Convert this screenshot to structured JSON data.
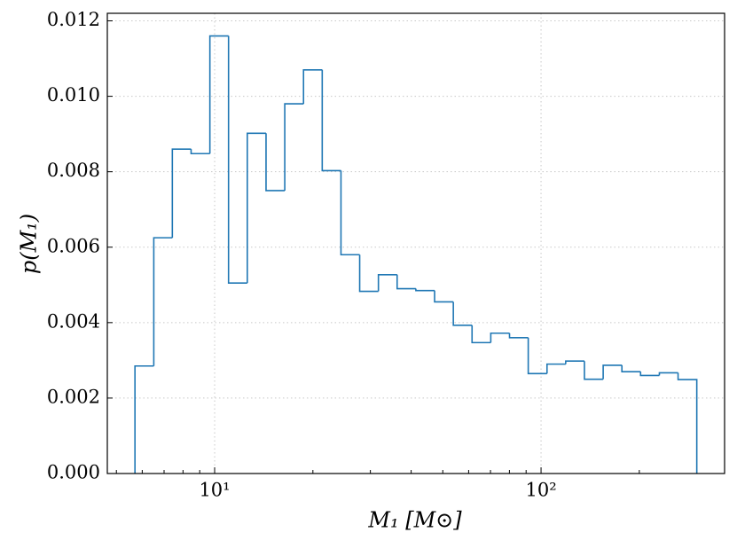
{
  "chart_data": {
    "type": "histogram",
    "histtype": "step",
    "color": "#1f77b4",
    "xlabel": "M₁ [M⊙]",
    "ylabel": "p(M₁)",
    "xscale": "log",
    "grid": true,
    "bins": [
      5.7,
      6.51,
      7.42,
      8.47,
      9.67,
      11.03,
      12.59,
      14.37,
      16.4,
      18.72,
      21.36,
      24.38,
      27.82,
      31.75,
      36.23,
      41.35,
      47.19,
      53.86,
      61.46,
      70.15,
      80.06,
      91.36,
      104.3,
      119.0,
      135.8,
      155.0,
      176.9,
      201.8,
      230.4,
      262.9,
      300.0
    ],
    "values": [
      0.00285,
      0.00625,
      0.0086,
      0.00848,
      0.0116,
      0.00505,
      0.00902,
      0.0075,
      0.0098,
      0.0107,
      0.00803,
      0.0058,
      0.00483,
      0.00527,
      0.0049,
      0.00485,
      0.00455,
      0.00393,
      0.00347,
      0.00372,
      0.0036,
      0.00265,
      0.0029,
      0.00298,
      0.0025,
      0.00287,
      0.0027,
      0.0026,
      0.00267,
      0.00249
    ],
    "xlim": [
      4.69,
      365
    ],
    "ylim": [
      0,
      0.0122
    ],
    "xticks": [
      {
        "value": 10,
        "label": "10¹"
      },
      {
        "value": 100,
        "label": "10²"
      }
    ],
    "xminorticks": [
      5,
      6,
      7,
      8,
      9,
      20,
      30,
      40,
      50,
      60,
      70,
      80,
      90,
      200,
      300
    ],
    "yticks": [
      {
        "value": 0,
        "label": "0.000"
      },
      {
        "value": 0.002,
        "label": "0.002"
      },
      {
        "value": 0.004,
        "label": "0.004"
      },
      {
        "value": 0.006,
        "label": "0.006"
      },
      {
        "value": 0.008,
        "label": "0.008"
      },
      {
        "value": 0.01,
        "label": "0.010"
      },
      {
        "value": 0.012,
        "label": "0.012"
      }
    ]
  }
}
